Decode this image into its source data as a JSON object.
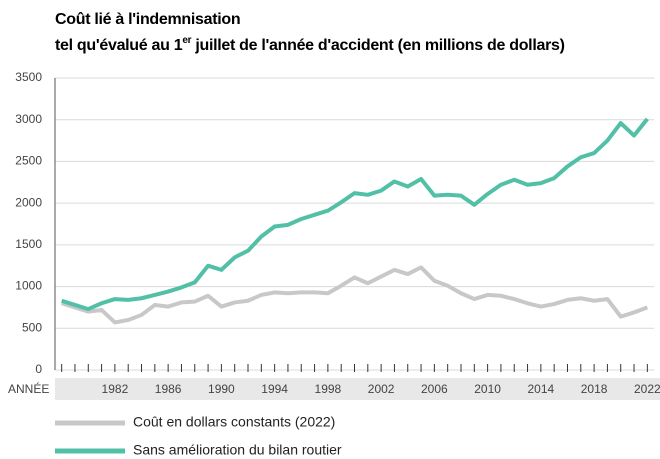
{
  "chart_data": {
    "type": "line",
    "title": "Coût lié à l'indemnisation",
    "subtitle": {
      "before": "tel qu'évalué au 1",
      "sup": "er",
      "after": " juillet de l'année d'accident (en millions de dollars)"
    },
    "x_label": "ANNÉE",
    "x": [
      1978,
      1979,
      1980,
      1981,
      1982,
      1983,
      1984,
      1985,
      1986,
      1987,
      1988,
      1989,
      1990,
      1991,
      1992,
      1993,
      1994,
      1995,
      1996,
      1997,
      1998,
      1999,
      2000,
      2001,
      2002,
      2003,
      2004,
      2005,
      2006,
      2007,
      2008,
      2009,
      2010,
      2011,
      2012,
      2013,
      2014,
      2015,
      2016,
      2017,
      2018,
      2019,
      2020,
      2021,
      2022
    ],
    "xlim": [
      1977.5,
      2022.5
    ],
    "xticks": [
      1982,
      1986,
      1990,
      1994,
      1998,
      2002,
      2006,
      2010,
      2014,
      2018,
      2022
    ],
    "ylim": [
      0,
      3500
    ],
    "yticks": [
      0,
      500,
      1000,
      1500,
      2000,
      2500,
      3000,
      3500
    ],
    "grid": true,
    "series": [
      {
        "name": "Coût en dollars constants (2022)",
        "color": "#c8c8c8",
        "values": [
          800,
          750,
          700,
          720,
          570,
          600,
          660,
          780,
          760,
          810,
          820,
          890,
          760,
          810,
          830,
          900,
          930,
          920,
          930,
          930,
          920,
          1010,
          1110,
          1040,
          1120,
          1200,
          1150,
          1230,
          1070,
          1010,
          920,
          850,
          900,
          890,
          850,
          800,
          760,
          790,
          840,
          860,
          830,
          850,
          640,
          690,
          750
        ]
      },
      {
        "name": "Sans amélioration du bilan routier",
        "color": "#52c0a6",
        "values": [
          830,
          780,
          730,
          800,
          850,
          840,
          860,
          900,
          940,
          990,
          1050,
          1250,
          1200,
          1350,
          1430,
          1600,
          1720,
          1740,
          1810,
          1860,
          1910,
          2010,
          2120,
          2100,
          2150,
          2260,
          2200,
          2290,
          2090,
          2100,
          2090,
          1980,
          2110,
          2220,
          2280,
          2220,
          2240,
          2300,
          2440,
          2550,
          2600,
          2750,
          2960,
          2810,
          3010
        ]
      }
    ]
  }
}
